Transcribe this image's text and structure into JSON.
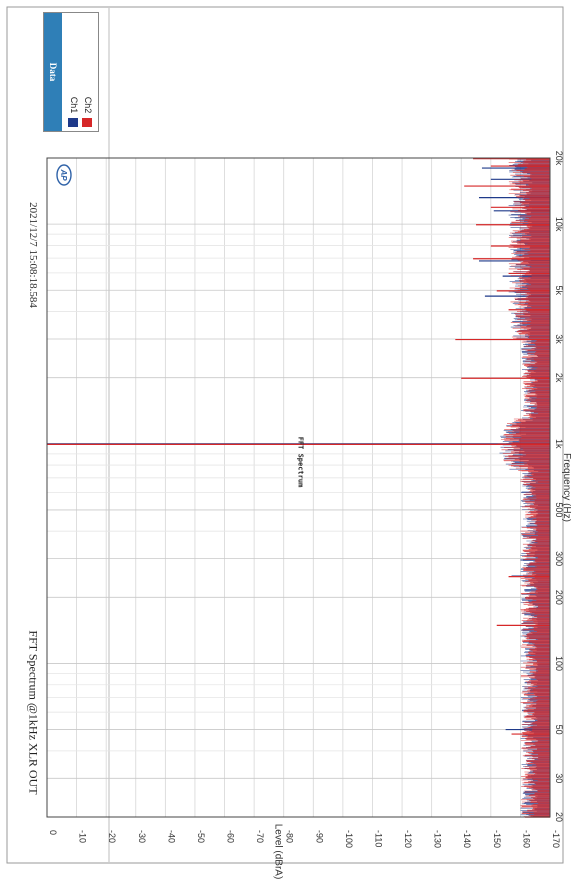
{
  "chart": {
    "title": "FFT Spectrum @1kHz XLR OUT",
    "center_title": "FFT Spectrum",
    "timestamp": "2021/12/7 15:08:18.584",
    "logo_text": "AP"
  },
  "legend": {
    "title": "Data",
    "items": [
      {
        "label": "Ch1",
        "color": "#1f3a8a"
      },
      {
        "label": "Ch2",
        "color": "#d62728"
      }
    ]
  },
  "chart_data": {
    "type": "line",
    "title": "FFT Spectrum @1kHz XLR OUT",
    "xlabel": "Frequency (Hz)",
    "ylabel": "Level (dBrA)",
    "xscale": "log",
    "xlim": [
      20,
      20000
    ],
    "ylim": [
      -170,
      0
    ],
    "grid": true,
    "legend_position": "top-right",
    "x_ticks": [
      20,
      30,
      50,
      100,
      200,
      300,
      500,
      1000,
      2000,
      3000,
      5000,
      10000,
      20000
    ],
    "x_tick_labels": [
      "20",
      "30",
      "50",
      "100",
      "200",
      "300",
      "500",
      "1k",
      "2k",
      "3k",
      "5k",
      "10k",
      "20k"
    ],
    "y_ticks": [
      0,
      -10,
      -20,
      -30,
      -40,
      -50,
      -60,
      -70,
      -80,
      -90,
      -100,
      -110,
      -120,
      -130,
      -140,
      -150,
      -160,
      -170
    ],
    "y_tick_labels": [
      "0",
      "-10",
      "-20",
      "-30",
      "-40",
      "-50",
      "-60",
      "-70",
      "-80",
      "-90",
      "-100",
      "-110",
      "-120",
      "-130",
      "-140",
      "-150",
      "-160",
      "-170"
    ],
    "series": [
      {
        "name": "Ch1",
        "color": "#1f3a8a",
        "peaks": [
          {
            "x": 50,
            "y": -155
          },
          {
            "x": 250,
            "y": -157
          },
          {
            "x": 1000,
            "y": 0
          },
          {
            "x": 4700,
            "y": -148
          },
          {
            "x": 5800,
            "y": -154
          },
          {
            "x": 6800,
            "y": -146
          },
          {
            "x": 9300,
            "y": -160
          },
          {
            "x": 11500,
            "y": -151
          },
          {
            "x": 13200,
            "y": -146
          },
          {
            "x": 16000,
            "y": -150
          },
          {
            "x": 18000,
            "y": -147
          }
        ]
      },
      {
        "name": "Ch2",
        "color": "#d62728",
        "peaks": [
          {
            "x": 48,
            "y": -157
          },
          {
            "x": 150,
            "y": -152
          },
          {
            "x": 250,
            "y": -156
          },
          {
            "x": 1000,
            "y": 0
          },
          {
            "x": 2000,
            "y": -140
          },
          {
            "x": 3000,
            "y": -138
          },
          {
            "x": 4100,
            "y": -156
          },
          {
            "x": 5000,
            "y": -152
          },
          {
            "x": 6000,
            "y": -156
          },
          {
            "x": 7000,
            "y": -144
          },
          {
            "x": 8000,
            "y": -150
          },
          {
            "x": 10000,
            "y": -145
          },
          {
            "x": 12000,
            "y": -150
          },
          {
            "x": 15000,
            "y": -141
          },
          {
            "x": 18500,
            "y": -150
          },
          {
            "x": 20000,
            "y": -144
          }
        ]
      }
    ]
  }
}
